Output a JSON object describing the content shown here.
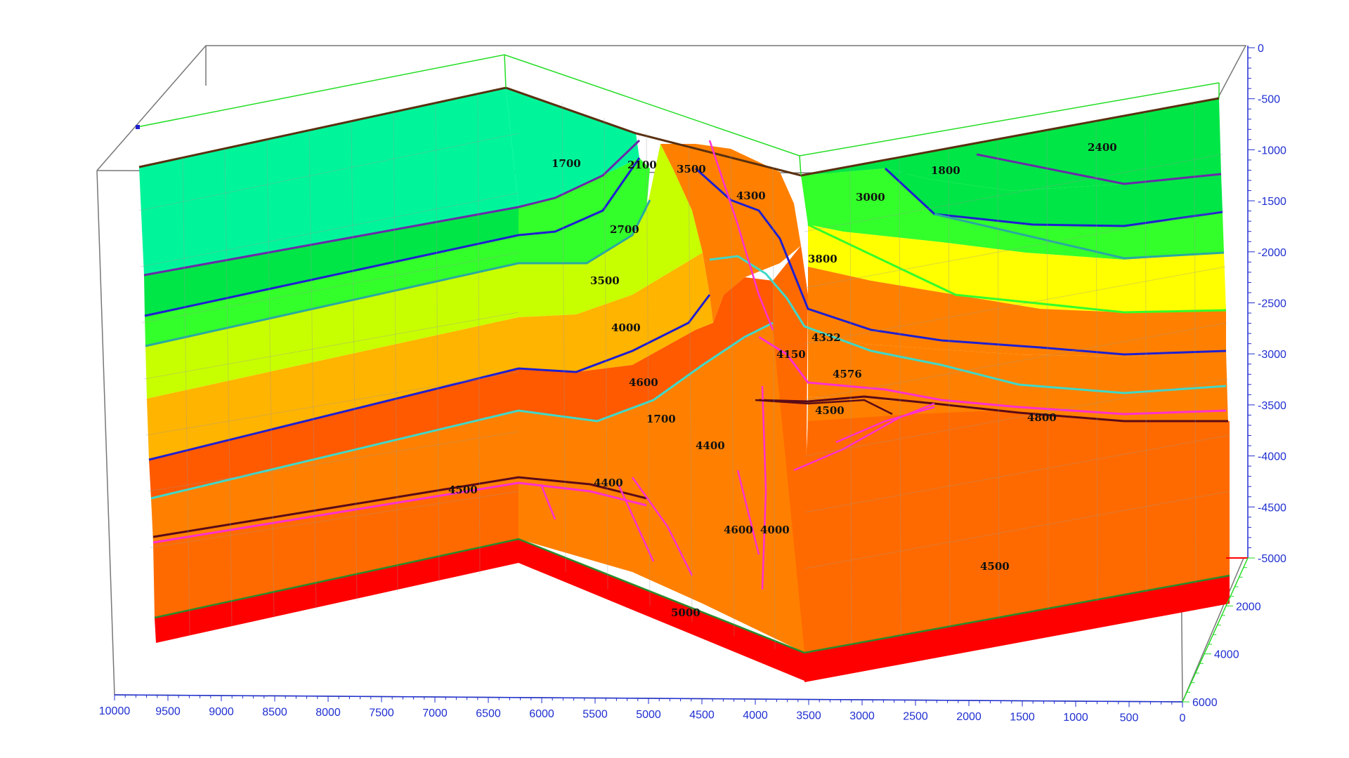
{
  "view": "3D velocity model fence diagram",
  "x_axis": {
    "ticks": [
      "10000",
      "9500",
      "9000",
      "8500",
      "8000",
      "7500",
      "7000",
      "6500",
      "6000",
      "5500",
      "5000",
      "4500",
      "4000",
      "3500",
      "3000",
      "2500",
      "2000",
      "1500",
      "1000",
      "500",
      "0"
    ],
    "color": "#1f2fd0"
  },
  "depth_axis": {
    "ticks": [
      "0",
      "-500",
      "-1000",
      "-1500",
      "-2000",
      "-2500",
      "-3000",
      "-3500",
      "-4000",
      "-4500",
      "-5000"
    ],
    "color": "#1f2fd0"
  },
  "y_axis": {
    "ticks": [
      "0",
      "2000",
      "4000",
      "6000"
    ],
    "color": "#1f2fd0"
  },
  "layer_colors": [
    "#00f59a",
    "#00e646",
    "#33ff2a",
    "#c8ff00",
    "#ffff00",
    "#ffb400",
    "#ff8000",
    "#ff5a00",
    "#ff0000"
  ],
  "horizon_colors": [
    "#6a2aa8",
    "#1f1fd0",
    "#40d8c8",
    "#ff30d0",
    "#5a0a18",
    "#2a8a2a"
  ],
  "velocity_labels": {
    "l1": "1700",
    "l2": "2100",
    "l3": "2700",
    "l4": "3500",
    "l5": "3500",
    "l6": "4000",
    "l7": "4600",
    "l8": "4300",
    "l9": "4400",
    "l10": "1700",
    "l11": "4500",
    "l12": "4400",
    "l13": "5000",
    "l14": "4600",
    "l15": "2400",
    "l16": "1800",
    "l17": "3000",
    "l18": "3800",
    "l19": "4332",
    "l20": "4576",
    "l21": "4150",
    "l22": "4800",
    "l23": "4500",
    "l24": "4000",
    "l25": "4500"
  }
}
